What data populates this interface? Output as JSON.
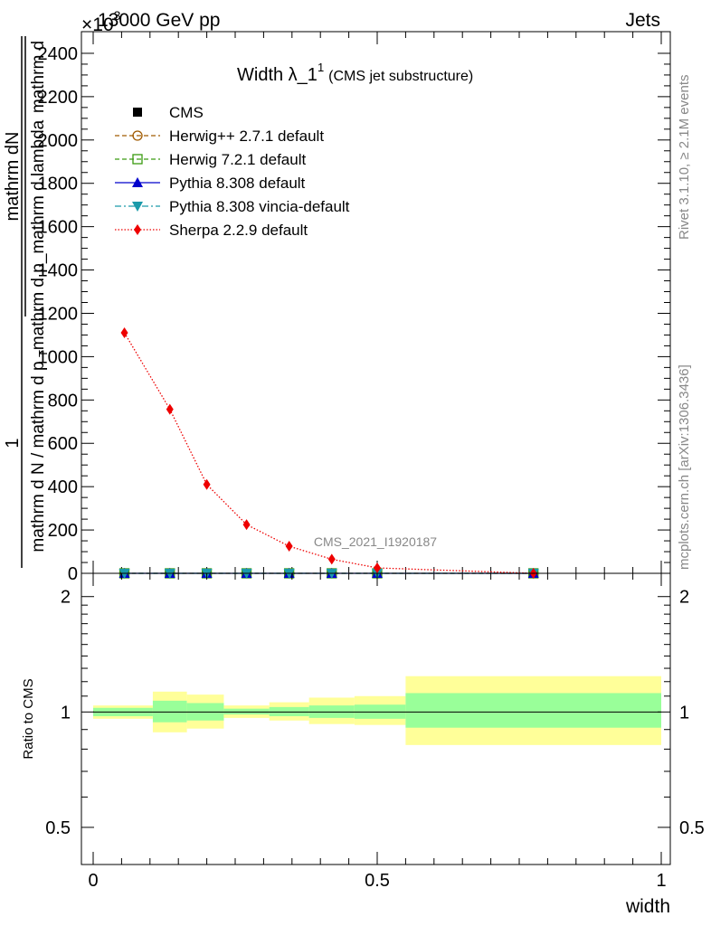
{
  "header": {
    "energy_label": "13000 GeV pp",
    "process_label": "Jets",
    "exponent_label": "×10",
    "exponent_power": "3",
    "title_main": "Width λ_1",
    "title_sup": "1",
    "title_sub": "(CMS jet substructure)",
    "analysis_id": "CMS_2021_I1920187",
    "rivet_label": "Rivet 3.1.10, ≥ 2.1M events",
    "mcplots_label": "mcplots.cern.ch [arXiv:1306.3436]"
  },
  "main_ylabel": {
    "prefactor": "1",
    "numerator": "mathrm dN",
    "denominator_a": "mathrm d N / mathrm d p",
    "denominator_sub": "T",
    "denominator_b": "mathrm d p_mathrm d lambda",
    "denominator_c": "mathrm d"
  },
  "legend": [
    {
      "label": "CMS",
      "marker": "square-filled",
      "color": "#000000",
      "line": "none"
    },
    {
      "label": "Herwig++ 2.7.1 default",
      "marker": "circle-open",
      "color": "#a05a00",
      "line": "dashed"
    },
    {
      "label": "Herwig 7.2.1 default",
      "marker": "square-open",
      "color": "#3a9a10",
      "line": "dashed"
    },
    {
      "label": "Pythia 8.308 default",
      "marker": "triangle-up",
      "color": "#0000cc",
      "line": "solid"
    },
    {
      "label": "Pythia 8.308 vincia-default",
      "marker": "triangle-down",
      "color": "#1a9aaa",
      "line": "dashdot"
    },
    {
      "label": "Sherpa 2.2.9 default",
      "marker": "diamond",
      "color": "#ee0000",
      "line": "dotted"
    }
  ],
  "chart_data": [
    {
      "type": "line",
      "xlabel": "",
      "ylabel": "",
      "xlim": [
        0,
        1
      ],
      "ylim": [
        0,
        2500
      ],
      "yticks": [
        0,
        200,
        400,
        600,
        800,
        1000,
        1200,
        1400,
        1600,
        1800,
        2000,
        2200,
        2400
      ],
      "y_multiplier": "×10^3",
      "series": [
        {
          "name": "CMS",
          "x": [
            0.055,
            0.135,
            0.2,
            0.27,
            0.345,
            0.42,
            0.5,
            0.775
          ],
          "y": [
            0,
            0,
            0,
            0,
            0,
            0,
            0,
            0
          ]
        },
        {
          "name": "Herwig++ 2.7.1 default",
          "x": [
            0.055,
            0.135,
            0.2,
            0.27,
            0.345,
            0.42,
            0.5,
            0.775
          ],
          "y": [
            0,
            0,
            0,
            0,
            0,
            0,
            0,
            0
          ]
        },
        {
          "name": "Herwig 7.2.1 default",
          "x": [
            0.055,
            0.135,
            0.2,
            0.27,
            0.345,
            0.42,
            0.5,
            0.775
          ],
          "y": [
            0,
            0,
            0,
            0,
            0,
            0,
            0,
            0
          ]
        },
        {
          "name": "Pythia 8.308 default",
          "x": [
            0.055,
            0.135,
            0.2,
            0.27,
            0.345,
            0.42,
            0.5,
            0.775
          ],
          "y": [
            0,
            0,
            0,
            0,
            0,
            0,
            0,
            0
          ]
        },
        {
          "name": "Pythia 8.308 vincia-default",
          "x": [
            0.055,
            0.135,
            0.2,
            0.27,
            0.345,
            0.42,
            0.5,
            0.775
          ],
          "y": [
            0,
            0,
            0,
            0,
            0,
            0,
            0,
            0
          ]
        },
        {
          "name": "Sherpa 2.2.9 default",
          "x": [
            0.055,
            0.135,
            0.2,
            0.27,
            0.345,
            0.42,
            0.5,
            0.775
          ],
          "y": [
            1110,
            757,
            410,
            225,
            125,
            65,
            25,
            0
          ]
        }
      ]
    },
    {
      "type": "area",
      "xlabel": "width",
      "ylabel": "Ratio to CMS",
      "xlim": [
        0,
        1
      ],
      "ylim": [
        0.4,
        2.3
      ],
      "yscale": "log",
      "yticks": [
        0.5,
        1,
        2
      ],
      "xticks": [
        0,
        0.5,
        1
      ],
      "bins": [
        {
          "lo": 0.0,
          "hi": 0.105,
          "green": [
            0.975,
            1.025
          ],
          "yellow": [
            0.96,
            1.04
          ]
        },
        {
          "lo": 0.105,
          "hi": 0.165,
          "green": [
            0.94,
            1.07
          ],
          "yellow": [
            0.885,
            1.13
          ]
        },
        {
          "lo": 0.165,
          "hi": 0.23,
          "green": [
            0.95,
            1.055
          ],
          "yellow": [
            0.905,
            1.11
          ]
        },
        {
          "lo": 0.23,
          "hi": 0.31,
          "green": [
            0.985,
            1.02
          ],
          "yellow": [
            0.965,
            1.04
          ]
        },
        {
          "lo": 0.31,
          "hi": 0.38,
          "green": [
            0.975,
            1.03
          ],
          "yellow": [
            0.95,
            1.06
          ]
        },
        {
          "lo": 0.38,
          "hi": 0.46,
          "green": [
            0.965,
            1.04
          ],
          "yellow": [
            0.93,
            1.09
          ]
        },
        {
          "lo": 0.46,
          "hi": 0.55,
          "green": [
            0.96,
            1.045
          ],
          "yellow": [
            0.925,
            1.1
          ]
        },
        {
          "lo": 0.55,
          "hi": 1.0,
          "green": [
            0.91,
            1.12
          ],
          "yellow": [
            0.82,
            1.24
          ]
        }
      ],
      "reference_line": 1
    }
  ]
}
